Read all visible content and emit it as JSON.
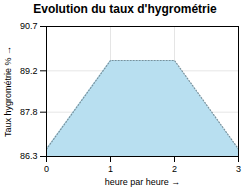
{
  "chart_data": {
    "type": "area",
    "title": "Evolution du taux d'hygrométrie",
    "xlabel": "heure par heure",
    "ylabel": "Taux hygrométrie %",
    "x": [
      0,
      1,
      2,
      3
    ],
    "values": [
      86.55,
      89.55,
      89.55,
      86.55
    ],
    "color": "#b8dff0",
    "line_style": "dotted",
    "xlim": [
      0,
      3
    ],
    "ylim": [
      86.3,
      90.7
    ],
    "xticks": [
      0,
      1,
      2,
      3
    ],
    "yticks": [
      86.3,
      87.8,
      89.2,
      90.7
    ],
    "grid": true
  }
}
